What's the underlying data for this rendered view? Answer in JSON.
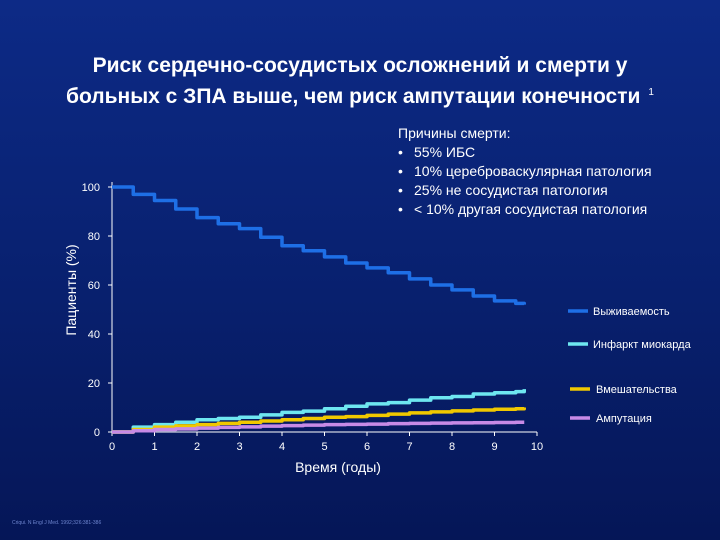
{
  "slide": {
    "title_line1": "Риск сердечно-сосудистых осложнений и смерти у",
    "title_line2": "больных с ЗПА выше, чем риск ампутации конечности",
    "title_sup": "1",
    "source_note": "Criqui. N Engl J Med. 1992;326:381-386"
  },
  "causes": {
    "title": "Причины смерти:",
    "items": [
      "55% ИБС",
      "10% цереброваскулярная патология",
      "25% не сосудистая патология",
      "< 10% другая сосудистая патология"
    ]
  },
  "chart_data": {
    "type": "line",
    "title": "",
    "xlabel": "Время (годы)",
    "ylabel": "Пациенты (%)",
    "xlim": [
      0,
      10
    ],
    "ylim": [
      0,
      100
    ],
    "xticks": [
      0,
      1,
      2,
      3,
      4,
      5,
      6,
      7,
      8,
      9,
      10
    ],
    "yticks": [
      0,
      20,
      40,
      60,
      80,
      100
    ],
    "grid": false,
    "legend_position": "right",
    "series": [
      {
        "name": "Выживаемость",
        "color": "#1e6fe6",
        "x": [
          0,
          0.5,
          1,
          1.5,
          2,
          2.5,
          3,
          3.5,
          4,
          4.5,
          5,
          5.5,
          6,
          6.5,
          7,
          7.5,
          8,
          8.5,
          9,
          9.5,
          9.7
        ],
        "y": [
          100,
          97,
          94.5,
          91,
          87.5,
          85,
          83,
          79.5,
          76,
          74,
          71.5,
          69,
          67,
          65,
          62.5,
          60,
          58,
          55.5,
          53.5,
          52.5,
          52
        ]
      },
      {
        "name": "Инфаркт миокарда",
        "color": "#6ee6f0",
        "x": [
          0,
          0.5,
          1,
          1.5,
          2,
          2.5,
          3,
          3.5,
          4,
          4.5,
          5,
          5.5,
          6,
          6.5,
          7,
          7.5,
          8,
          8.5,
          9,
          9.5,
          9.7
        ],
        "y": [
          0,
          2,
          3,
          4,
          5,
          5.5,
          6,
          7,
          8,
          8.5,
          9.5,
          10.5,
          11.5,
          12,
          13,
          14,
          14.5,
          15.5,
          16,
          16.5,
          17.5
        ]
      },
      {
        "name": "Вмешательства",
        "color": "#f0c800",
        "x": [
          0,
          0.5,
          1,
          1.5,
          2,
          2.5,
          3,
          3.5,
          4,
          4.5,
          5,
          5.5,
          6,
          6.5,
          7,
          7.5,
          8,
          8.5,
          9,
          9.5,
          9.7
        ],
        "y": [
          0,
          1,
          2,
          2.5,
          3,
          3.5,
          4,
          4.5,
          5,
          5.5,
          6,
          6.3,
          6.8,
          7.3,
          7.8,
          8.2,
          8.6,
          9,
          9.3,
          9.5,
          10
        ]
      },
      {
        "name": "Ампутация",
        "color": "#c78ae6",
        "x": [
          0,
          0.5,
          1,
          1.5,
          2,
          2.5,
          3,
          3.5,
          4,
          4.5,
          5,
          5.5,
          6,
          6.5,
          7,
          7.5,
          8,
          8.5,
          9,
          9.5,
          9.7
        ],
        "y": [
          0,
          0.5,
          1,
          1.3,
          1.6,
          1.9,
          2.1,
          2.4,
          2.6,
          2.8,
          3,
          3.1,
          3.2,
          3.4,
          3.5,
          3.6,
          3.7,
          3.8,
          3.9,
          4,
          4
        ]
      }
    ]
  }
}
